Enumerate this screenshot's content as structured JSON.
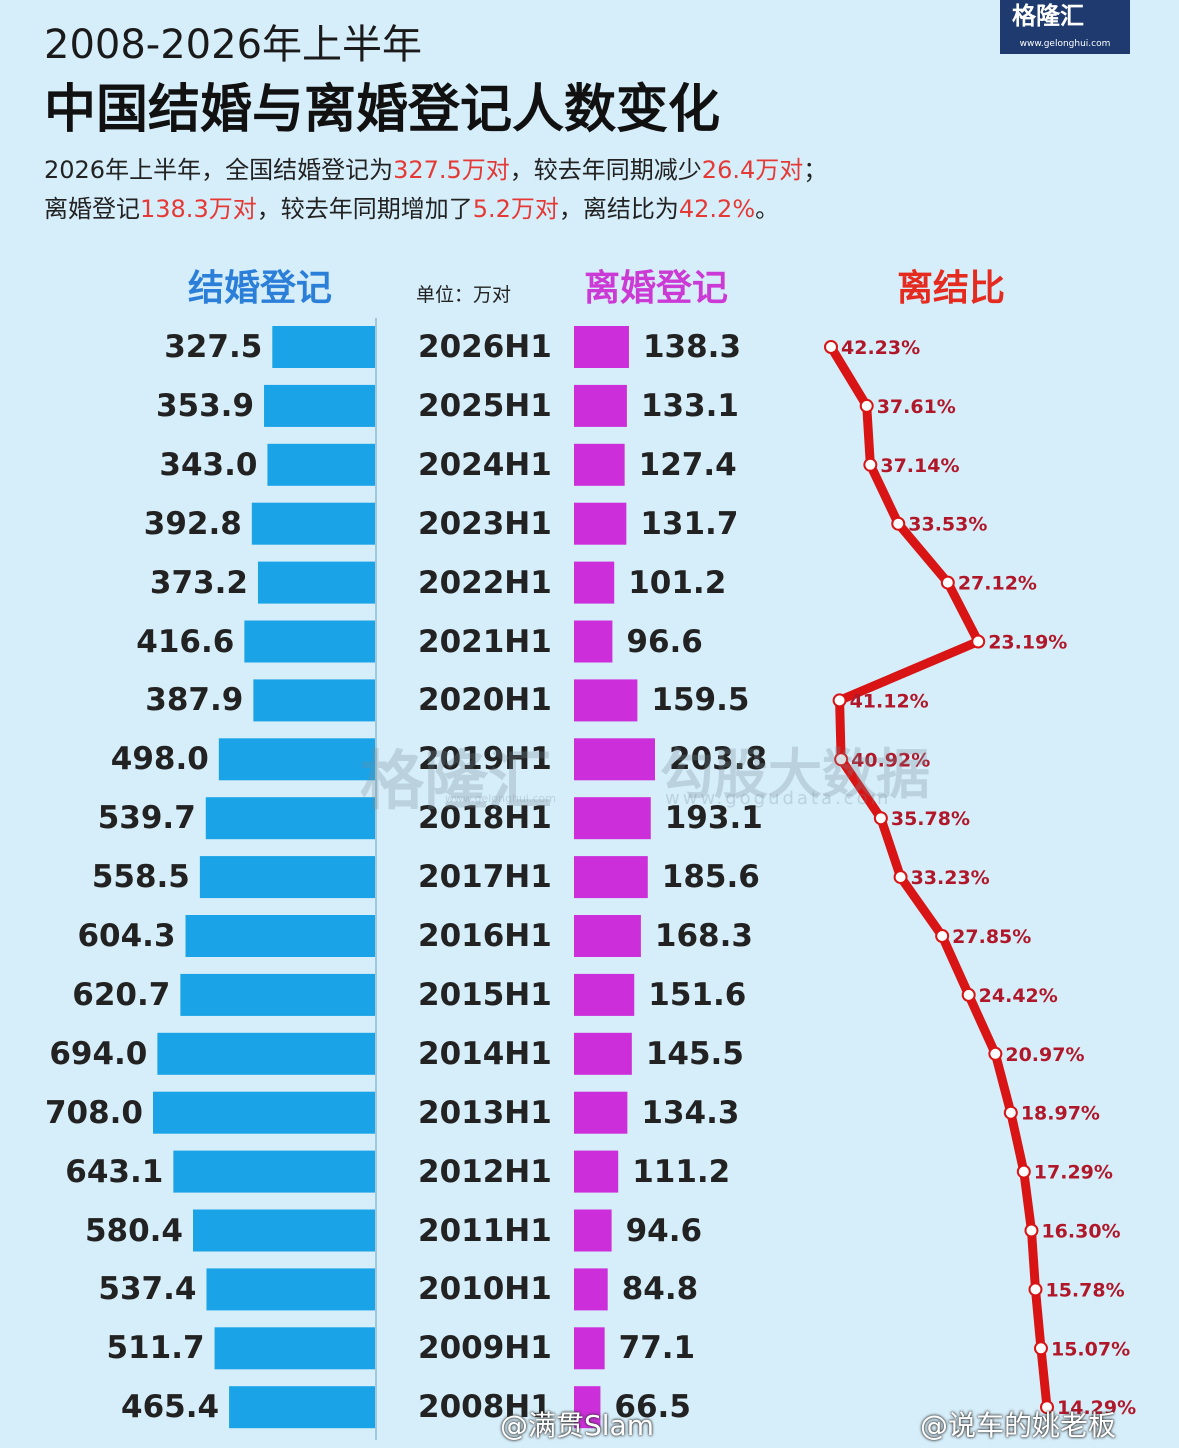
{
  "logo": {
    "name": "格隆汇",
    "url": "www.gelonghui.com"
  },
  "header": {
    "subtitle": "2008-2026年上半年",
    "title": "中国结婚与离婚登记人数变化"
  },
  "summary": {
    "line1": [
      {
        "text": "2026年上半年，全国结婚登记为",
        "hl": false
      },
      {
        "text": "327.5万对",
        "hl": true
      },
      {
        "text": "，较去年同期减少",
        "hl": false
      },
      {
        "text": "26.4万对",
        "hl": true
      },
      {
        "text": "；",
        "hl": false
      }
    ],
    "line2": [
      {
        "text": "离婚登记",
        "hl": false
      },
      {
        "text": "138.3万对",
        "hl": true
      },
      {
        "text": "，较去年同期增加了",
        "hl": false
      },
      {
        "text": "5.2万对",
        "hl": true
      },
      {
        "text": "，离结比为",
        "hl": false
      },
      {
        "text": "42.2%",
        "hl": true
      },
      {
        "text": "。",
        "hl": false
      }
    ]
  },
  "columns": {
    "marriage": "结婚登记",
    "unit": "单位：万对",
    "divorce": "离婚登记",
    "ratio": "离结比"
  },
  "colors": {
    "marriage_bar": "#1aa3e6",
    "divorce_bar": "#cc2fd9",
    "ratio_line": "#d81414",
    "ratio_label": "#b0182a",
    "highlight": "#e53935"
  },
  "chart_data": {
    "type": "bar",
    "categories": [
      "2026H1",
      "2025H1",
      "2024H1",
      "2023H1",
      "2022H1",
      "2021H1",
      "2020H1",
      "2019H1",
      "2018H1",
      "2017H1",
      "2016H1",
      "2015H1",
      "2014H1",
      "2013H1",
      "2012H1",
      "2011H1",
      "2010H1",
      "2009H1",
      "2008H1"
    ],
    "series": [
      {
        "name": "结婚登记",
        "values": [
          327.5,
          353.9,
          343.0,
          392.8,
          373.2,
          416.6,
          387.9,
          498.0,
          539.7,
          558.5,
          604.3,
          620.7,
          694.0,
          708.0,
          643.1,
          580.4,
          537.4,
          511.7,
          465.4
        ]
      },
      {
        "name": "离婚登记",
        "values": [
          138.3,
          133.1,
          127.4,
          131.7,
          101.2,
          96.6,
          159.5,
          203.8,
          193.1,
          185.6,
          168.3,
          151.6,
          145.5,
          134.3,
          111.2,
          94.6,
          84.8,
          77.1,
          66.5
        ]
      },
      {
        "name": "离结比",
        "values": [
          42.23,
          37.61,
          37.14,
          33.53,
          27.12,
          23.19,
          41.12,
          40.92,
          35.78,
          33.23,
          27.85,
          24.42,
          20.97,
          18.97,
          17.29,
          16.3,
          15.78,
          15.07,
          14.29
        ]
      }
    ],
    "marriage_labels": [
      "327.5",
      "353.9",
      "343.0",
      "392.8",
      "373.2",
      "416.6",
      "387.9",
      "498.0",
      "539.7",
      "558.5",
      "604.3",
      "620.7",
      "694.0",
      "708.0",
      "643.1",
      "580.4",
      "537.4",
      "511.7",
      "465.4"
    ],
    "divorce_labels": [
      "138.3",
      "133.1",
      "127.4",
      "131.7",
      "101.2",
      "96.6",
      "159.5",
      "203.8",
      "193.1",
      "185.6",
      "168.3",
      "151.6",
      "145.5",
      "134.3",
      "111.2",
      "94.6",
      "84.8",
      "77.1",
      "66.5"
    ],
    "ratio_labels": [
      "42.23%",
      "37.61%",
      "37.14%",
      "33.53%",
      "27.12%",
      "23.19%",
      "41.12%",
      "40.92%",
      "35.78%",
      "33.23%",
      "27.85%",
      "24.42%",
      "20.97%",
      "18.97%",
      "17.29%",
      "16.30%",
      "15.78%",
      "15.07%",
      "14.29%"
    ]
  },
  "watermarks": {
    "wm1": "格隆汇",
    "wm1_url": "www.gelonghui.com",
    "wm2": "勾股大数据",
    "wm2_url": "www.gogudata.com"
  },
  "credits": {
    "left": "@满贯Slam",
    "right": "@说车的姚老板"
  }
}
